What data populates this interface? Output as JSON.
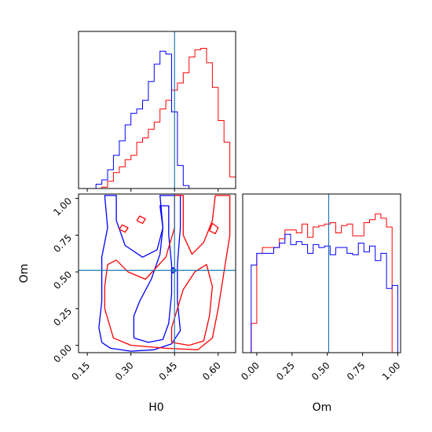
{
  "colors": {
    "red_series": "#ff0000",
    "blue_series": "#0000ff",
    "truth_line": "#1f77b4",
    "frame": "#000000"
  },
  "chart_data": [
    {
      "type": "histogram",
      "panel": "H0 marginal (top-left)",
      "x_param": "H0",
      "xlim": [
        0.12,
        0.66
      ],
      "truth": 0.45,
      "bin_edges": [
        0.12,
        0.14,
        0.16,
        0.18,
        0.2,
        0.22,
        0.24,
        0.26,
        0.28,
        0.3,
        0.32,
        0.34,
        0.36,
        0.38,
        0.4,
        0.42,
        0.44,
        0.46,
        0.48,
        0.5,
        0.52,
        0.54,
        0.56,
        0.58,
        0.6,
        0.62,
        0.64,
        0.66
      ],
      "series": [
        {
          "color": "red",
          "values": [
            0,
            0,
            0,
            0,
            0.01,
            0.05,
            0.11,
            0.15,
            0.2,
            0.23,
            0.32,
            0.35,
            0.41,
            0.46,
            0.55,
            0.61,
            0.68,
            0.73,
            0.8,
            0.91,
            0.96,
            0.97,
            0.87,
            0.7,
            0.47,
            0.32,
            0.08
          ]
        },
        {
          "color": "blue",
          "values": [
            0,
            0,
            0,
            0.03,
            0.06,
            0.13,
            0.23,
            0.33,
            0.44,
            0.52,
            0.55,
            0.61,
            0.74,
            0.86,
            0.95,
            0.93,
            0.53,
            0.16,
            0.02,
            0,
            0,
            0,
            0,
            0,
            0,
            0,
            0
          ]
        }
      ]
    },
    {
      "type": "contour",
      "panel": "H0 vs Om joint (bottom-left)",
      "xlabel": "H0",
      "ylabel": "Om",
      "xlim": [
        0.12,
        0.66
      ],
      "ylim": [
        -0.05,
        1.03
      ],
      "xticks": [
        "0.15",
        "0.30",
        "0.45",
        "0.60"
      ],
      "yticks": [
        "0.00",
        "0.25",
        "0.50",
        "0.75",
        "1.00"
      ],
      "truth": {
        "H0": 0.45,
        "Om": 0.51
      },
      "series": [
        {
          "color": "blue",
          "contours": [
            [
              [
                0.2,
                0.02
              ],
              [
                0.23,
                -0.02
              ],
              [
                0.3,
                -0.04
              ],
              [
                0.38,
                -0.03
              ],
              [
                0.44,
                0.01
              ],
              [
                0.47,
                0.1
              ],
              [
                0.46,
                0.3
              ],
              [
                0.46,
                0.55
              ],
              [
                0.47,
                0.8
              ],
              [
                0.47,
                1.02
              ],
              [
                0.4,
                1.02
              ],
              [
                0.41,
                0.8
              ],
              [
                0.39,
                0.65
              ],
              [
                0.34,
                0.6
              ],
              [
                0.28,
                0.68
              ],
              [
                0.25,
                0.85
              ],
              [
                0.25,
                1.02
              ],
              [
                0.21,
                1.02
              ],
              [
                0.22,
                0.8
              ],
              [
                0.2,
                0.6
              ],
              [
                0.2,
                0.3
              ],
              [
                0.19,
                0.12
              ],
              [
                0.2,
                0.02
              ]
            ],
            [
              [
                0.31,
                0.05
              ],
              [
                0.36,
                0.02
              ],
              [
                0.41,
                0.04
              ],
              [
                0.43,
                0.15
              ],
              [
                0.44,
                0.35
              ],
              [
                0.44,
                0.55
              ],
              [
                0.43,
                0.75
              ],
              [
                0.43,
                0.95
              ],
              [
                0.4,
                0.95
              ],
              [
                0.41,
                0.8
              ],
              [
                0.4,
                0.62
              ],
              [
                0.37,
                0.45
              ],
              [
                0.33,
                0.3
              ],
              [
                0.31,
                0.2
              ],
              [
                0.31,
                0.05
              ]
            ],
            [
              [
                0.445,
                0.49
              ],
              [
                0.452,
                0.51
              ],
              [
                0.445,
                0.53
              ],
              [
                0.438,
                0.51
              ],
              [
                0.445,
                0.49
              ]
            ]
          ]
        },
        {
          "color": "red",
          "contours": [
            [
              [
                0.21,
                0.25
              ],
              [
                0.24,
                0.05
              ],
              [
                0.3,
                0.0
              ],
              [
                0.42,
                -0.02
              ],
              [
                0.53,
                -0.03
              ],
              [
                0.58,
                0.05
              ],
              [
                0.6,
                0.25
              ],
              [
                0.62,
                0.5
              ],
              [
                0.64,
                0.75
              ],
              [
                0.64,
                1.02
              ],
              [
                0.59,
                1.02
              ],
              [
                0.58,
                0.85
              ],
              [
                0.55,
                0.7
              ],
              [
                0.51,
                0.62
              ],
              [
                0.48,
                0.75
              ],
              [
                0.48,
                1.02
              ],
              [
                0.45,
                1.02
              ],
              [
                0.45,
                0.8
              ],
              [
                0.42,
                0.6
              ],
              [
                0.35,
                0.45
              ],
              [
                0.29,
                0.5
              ],
              [
                0.25,
                0.58
              ],
              [
                0.22,
                0.55
              ],
              [
                0.21,
                0.4
              ],
              [
                0.21,
                0.25
              ]
            ],
            [
              [
                0.44,
                0.02
              ],
              [
                0.5,
                0.0
              ],
              [
                0.55,
                0.03
              ],
              [
                0.57,
                0.2
              ],
              [
                0.58,
                0.4
              ],
              [
                0.56,
                0.55
              ],
              [
                0.52,
                0.5
              ],
              [
                0.48,
                0.38
              ],
              [
                0.46,
                0.25
              ],
              [
                0.44,
                0.12
              ],
              [
                0.44,
                0.02
              ]
            ],
            [
              [
                0.57,
                0.78
              ],
              [
                0.59,
                0.76
              ],
              [
                0.6,
                0.8
              ],
              [
                0.58,
                0.83
              ],
              [
                0.57,
                0.78
              ]
            ],
            [
              [
                0.26,
                0.79
              ],
              [
                0.28,
                0.77
              ],
              [
                0.29,
                0.8
              ],
              [
                0.27,
                0.82
              ],
              [
                0.26,
                0.79
              ]
            ],
            [
              [
                0.32,
                0.85
              ],
              [
                0.34,
                0.83
              ],
              [
                0.35,
                0.86
              ],
              [
                0.33,
                0.88
              ],
              [
                0.32,
                0.85
              ]
            ]
          ]
        }
      ]
    },
    {
      "type": "histogram",
      "panel": "Om marginal (bottom-right)",
      "xlabel": "Om",
      "xlim": [
        -0.1,
        1.02
      ],
      "xticks": [
        "0.00",
        "0.25",
        "0.50",
        "0.75",
        "1.00"
      ],
      "truth": 0.51,
      "bin_edges": [
        -0.04,
        0.0,
        0.04,
        0.08,
        0.12,
        0.16,
        0.2,
        0.24,
        0.28,
        0.32,
        0.36,
        0.4,
        0.44,
        0.48,
        0.52,
        0.56,
        0.6,
        0.64,
        0.68,
        0.72,
        0.76,
        0.8,
        0.84,
        0.88,
        0.92,
        0.96,
        1.0
      ],
      "series": [
        {
          "color": "red",
          "values": [
            0.2,
            0.68,
            0.72,
            0.72,
            0.72,
            0.78,
            0.84,
            0.84,
            0.82,
            0.88,
            0.79,
            0.86,
            0.87,
            0.88,
            0.89,
            0.82,
            0.87,
            0.88,
            0.8,
            0.8,
            0.89,
            0.91,
            0.95,
            0.92,
            0.86,
            0.0
          ]
        },
        {
          "color": "blue",
          "values": [
            0.6,
            0.68,
            0.68,
            0.68,
            0.72,
            0.75,
            0.81,
            0.74,
            0.76,
            0.74,
            0.68,
            0.74,
            0.72,
            0.73,
            0.67,
            0.72,
            0.72,
            0.68,
            0.67,
            0.75,
            0.69,
            0.73,
            0.63,
            0.68,
            0.44,
            0.46
          ]
        }
      ]
    }
  ]
}
